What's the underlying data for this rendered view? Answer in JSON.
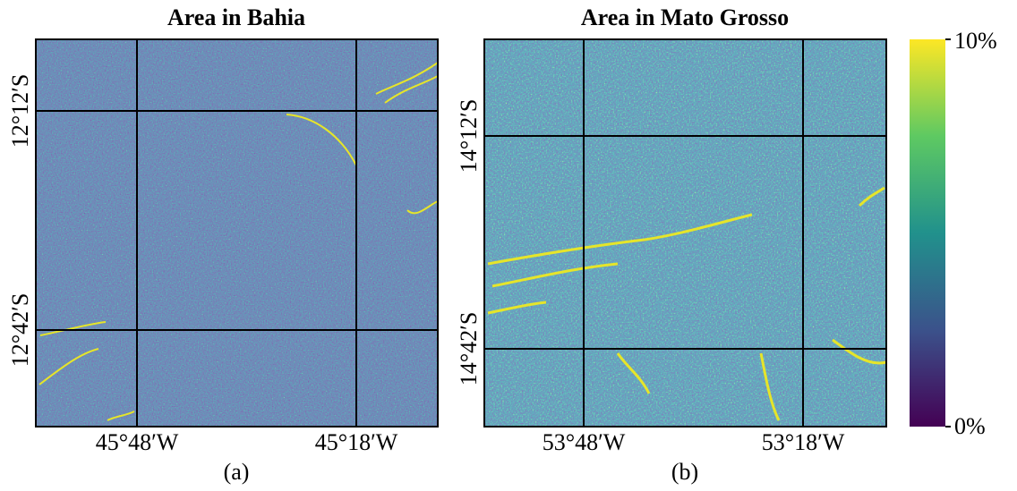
{
  "panels": [
    {
      "title": "Area in Bahia",
      "x_ticks": [
        "45°48′W",
        "45°18′W"
      ],
      "y_ticks": [
        "12°12′S",
        "12°42′S"
      ],
      "caption": "(a)"
    },
    {
      "title": "Area in Mato Grosso",
      "x_ticks": [
        "53°48′W",
        "53°18′W"
      ],
      "y_ticks": [
        "14°12′S",
        "14°42′S"
      ],
      "caption": "(b)"
    }
  ],
  "colorbar": {
    "max_label": "10%",
    "min_label": "0%"
  }
}
